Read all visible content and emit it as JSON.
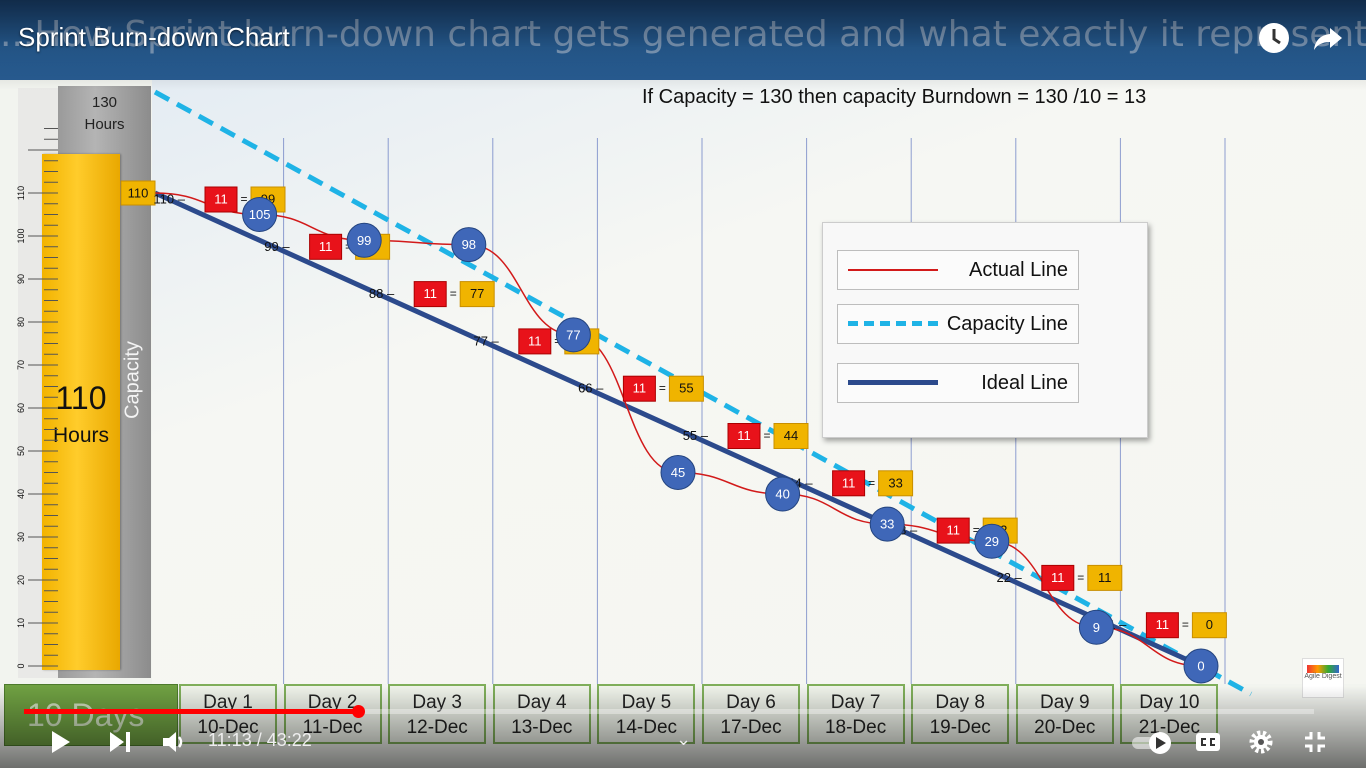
{
  "video": {
    "title": "Sprint Burn-down Chart",
    "slide_banner": "...How Sprint burn-down chart gets generated and what exactly it represents?"
  },
  "slide": {
    "formula": "If Capacity = 130 then capacity Burndown = 130 /10 = 13",
    "capacity_top": "130",
    "capacity_top_unit": "Hours",
    "capacity_label": "Capacity",
    "hours_value": "110",
    "hours_unit": "Hours",
    "days_label": "10 Days",
    "days": [
      {
        "day": "Day 1",
        "date": "10-Dec"
      },
      {
        "day": "Day 2",
        "date": "11-Dec"
      },
      {
        "day": "Day 3",
        "date": "12-Dec"
      },
      {
        "day": "Day 4",
        "date": "13-Dec"
      },
      {
        "day": "Day 5",
        "date": "14-Dec"
      },
      {
        "day": "Day 6",
        "date": "17-Dec"
      },
      {
        "day": "Day 7",
        "date": "18-Dec"
      },
      {
        "day": "Day 8",
        "date": "19-Dec"
      },
      {
        "day": "Day 9",
        "date": "20-Dec"
      },
      {
        "day": "Day 10",
        "date": "21-Dec"
      }
    ],
    "legend": {
      "actual": "Actual Line",
      "capacity": "Capacity Line",
      "ideal": "Ideal Line"
    },
    "watermark": "Agile Digest"
  },
  "chart_data": {
    "type": "line",
    "x": [
      0,
      1,
      2,
      3,
      4,
      5,
      6,
      7,
      8,
      9,
      10
    ],
    "y_ticks": [
      0,
      10,
      20,
      30,
      40,
      50,
      60,
      70,
      80,
      90,
      100,
      110
    ],
    "ylim": [
      0,
      130
    ],
    "series": [
      {
        "name": "Actual Line",
        "x": [
          0,
          1,
          2,
          3,
          4,
          5,
          6,
          7,
          8,
          9,
          10
        ],
        "values": [
          110,
          105,
          99,
          98,
          77,
          45,
          40,
          33,
          29,
          9,
          0
        ]
      },
      {
        "name": "Capacity Line",
        "x": [
          0,
          10
        ],
        "values": [
          130,
          0
        ]
      },
      {
        "name": "Ideal Line",
        "x": [
          0,
          10
        ],
        "values": [
          110,
          0
        ]
      }
    ],
    "ideal_steps": [
      {
        "from": "110",
        "burn": "11",
        "to": "99"
      },
      {
        "from": "99",
        "burn": "11",
        "to": "88"
      },
      {
        "from": "88",
        "burn": "11",
        "to": "77"
      },
      {
        "from": "77",
        "burn": "11",
        "to": "66"
      },
      {
        "from": "66",
        "burn": "11",
        "to": "55"
      },
      {
        "from": "55",
        "burn": "11",
        "to": "44"
      },
      {
        "from": "44",
        "burn": "11",
        "to": "33"
      },
      {
        "from": "33",
        "burn": "11",
        "to": "22"
      },
      {
        "from": "22",
        "burn": "11",
        "to": "11"
      },
      {
        "from": "11",
        "burn": "11",
        "to": "0"
      }
    ],
    "start_label": "110",
    "colors": {
      "actual": "#d21a1a",
      "capacity": "#1fb3e6",
      "ideal": "#2c4a8c",
      "point_fill": "#3f67b8",
      "burn_box": "#e8121a",
      "remaining_box": "#f0b400"
    }
  },
  "player": {
    "current_time": "11:13",
    "duration": "43:22",
    "progress": 0.259
  }
}
